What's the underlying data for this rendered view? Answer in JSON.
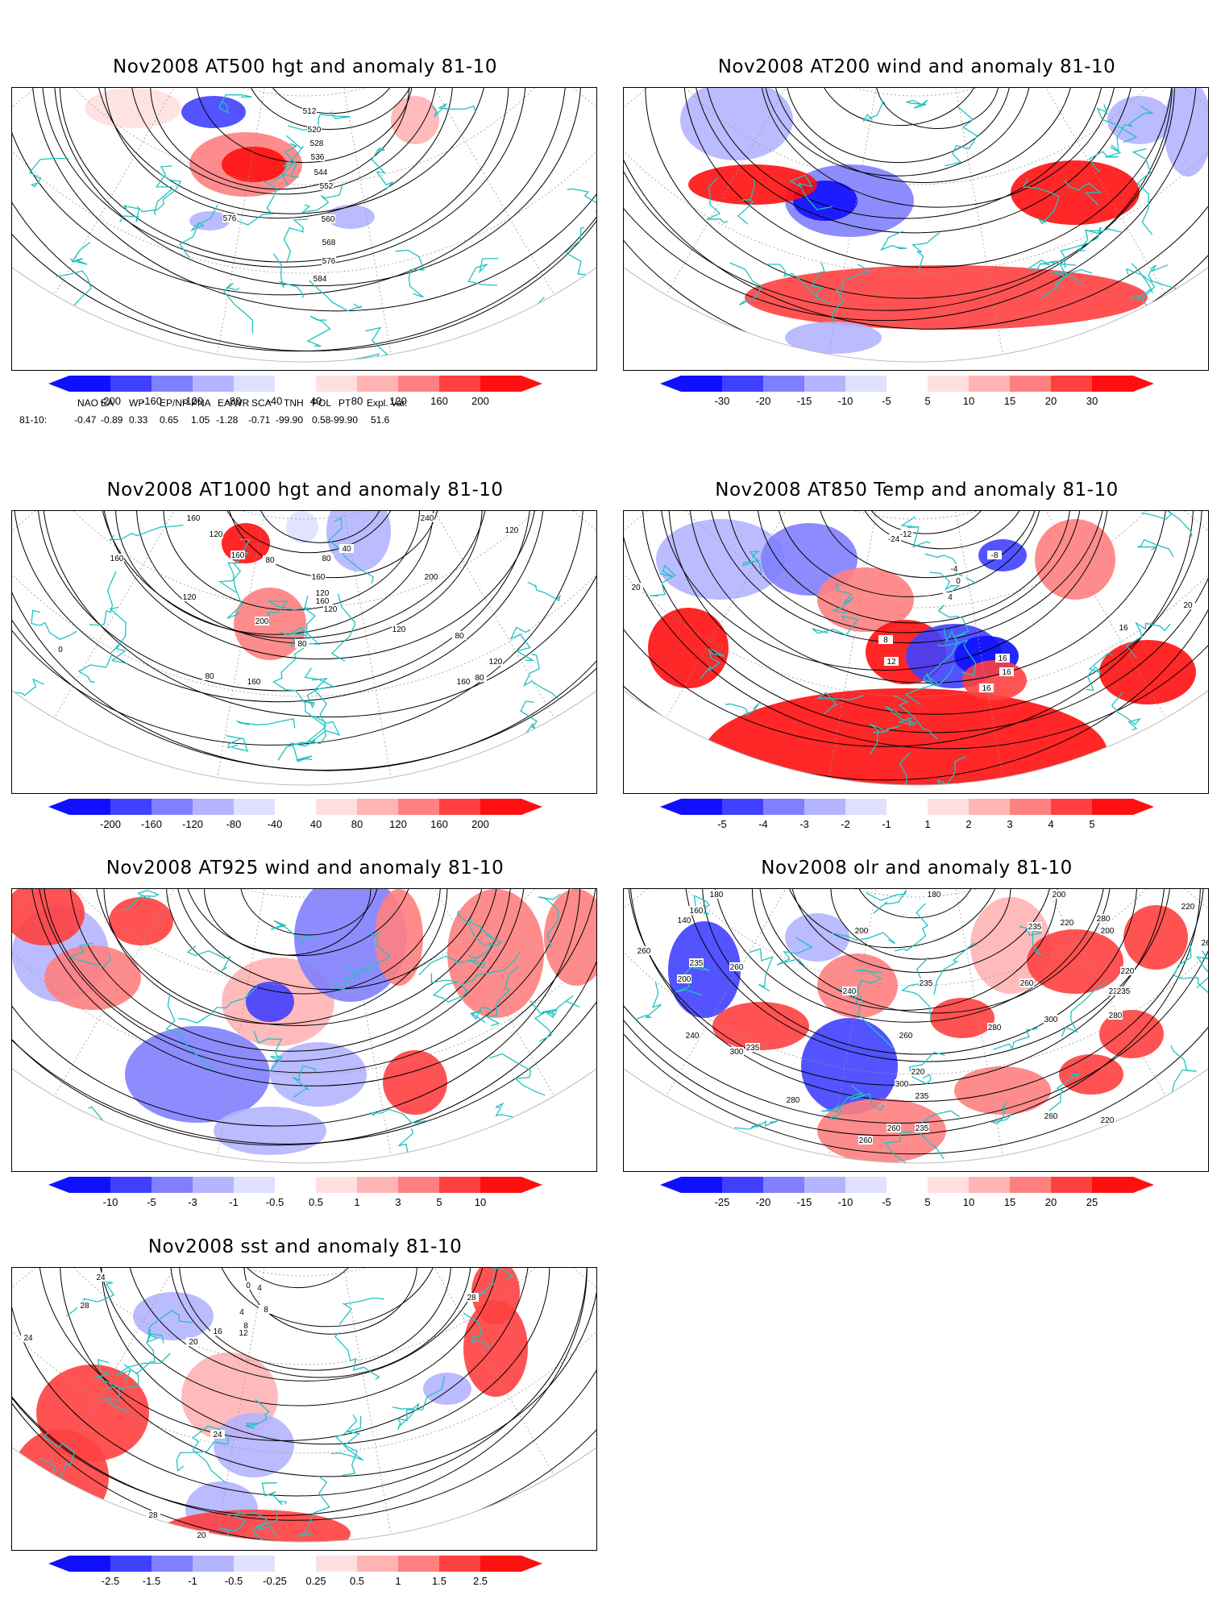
{
  "colors": {
    "coastline": "#20c2c2",
    "contour": "#000000",
    "pos": [
      "#ffe0e0",
      "#ffb4b4",
      "#ff8080",
      "#ff4040",
      "#ff1010"
    ],
    "neg": [
      "#1010ff",
      "#4040ff",
      "#8080ff",
      "#b4b4ff",
      "#e0e0ff"
    ]
  },
  "panels": [
    {
      "id": "p500",
      "title": "Nov2008 AT500 hgt and anomaly 81-10",
      "ticks": [
        "-200",
        "-160",
        "-120",
        "-80",
        "-40",
        "40",
        "80",
        "120",
        "160",
        "200"
      ],
      "labels": [
        "512",
        "520",
        "528",
        "536",
        "544",
        "552",
        "560",
        "568",
        "576",
        "584",
        "576"
      ]
    },
    {
      "id": "p200",
      "title": "Nov2008 AT200 wind and anomaly 81-10",
      "ticks": [
        "-30",
        "-20",
        "-15",
        "-10",
        "-5",
        "5",
        "10",
        "15",
        "20",
        "30"
      ],
      "labels": []
    },
    {
      "id": "p1000",
      "title": "Nov2008 AT1000 hgt and anomaly 81-10",
      "ticks": [
        "-200",
        "-160",
        "-120",
        "-80",
        "-40",
        "40",
        "80",
        "120",
        "160",
        "200"
      ],
      "labels": [
        "160",
        "120",
        "240",
        "120",
        "160",
        "80",
        "160",
        "200",
        "200",
        "160",
        "120",
        "160",
        "120",
        "80",
        "120",
        "80",
        "120",
        "160",
        "40",
        "80",
        "120",
        "160",
        "80",
        "80",
        "0"
      ]
    },
    {
      "id": "p850",
      "title": "Nov2008 AT850 Temp and anomaly 81-10",
      "ticks": [
        "-5",
        "-4",
        "-3",
        "-2",
        "-1",
        "1",
        "2",
        "3",
        "4",
        "5"
      ],
      "labels": [
        "-24",
        "-12",
        "-8",
        "-4",
        "0",
        "4",
        "8",
        "12",
        "16",
        "16",
        "16",
        "20",
        "20",
        "16",
        "16"
      ]
    },
    {
      "id": "p925",
      "title": "Nov2008 AT925 wind and anomaly 81-10",
      "ticks": [
        "-10",
        "-5",
        "-3",
        "-1",
        "-0.5",
        "0.5",
        "1",
        "3",
        "5",
        "10"
      ],
      "labels": []
    },
    {
      "id": "polr",
      "title": "Nov2008 olr and anomaly 81-10",
      "ticks": [
        "-25",
        "-20",
        "-15",
        "-10",
        "-5",
        "5",
        "10",
        "15",
        "20",
        "25"
      ],
      "labels": [
        "260",
        "180",
        "160",
        "140",
        "200",
        "180",
        "200",
        "220",
        "280",
        "220",
        "235",
        "235",
        "200",
        "260",
        "200",
        "220",
        "260",
        "235",
        "240",
        "260",
        "235",
        "260",
        "280",
        "300",
        "235",
        "280",
        "220",
        "235",
        "235",
        "260",
        "300",
        "280",
        "300",
        "235",
        "240",
        "260",
        "220",
        "260"
      ]
    },
    {
      "id": "psst",
      "title": "Nov2008 sst and anomaly 81-10",
      "ticks": [
        "-2.5",
        "-1.5",
        "-1",
        "-0.5",
        "-0.25",
        "0.25",
        "0.5",
        "1",
        "1.5",
        "2.5"
      ],
      "labels": [
        "24",
        "28",
        "24",
        "20",
        "16",
        "12",
        "8",
        "4",
        "0",
        "4",
        "8",
        "20",
        "24",
        "28",
        "28",
        "28"
      ]
    }
  ],
  "indices": {
    "headers": [
      "NAO",
      "EA",
      "WP",
      "EP/NP",
      "PNA",
      "EA/WR",
      "SCA",
      "TNH",
      "POL",
      "PT",
      "Expl. Var."
    ],
    "row_label": "81-10:",
    "values": [
      "-0.47",
      "-0.89",
      "0.33",
      "0.65",
      "1.05",
      "-1.28",
      "-0.71",
      "-99.90",
      "0.58",
      "-99.90",
      "51.6"
    ]
  }
}
